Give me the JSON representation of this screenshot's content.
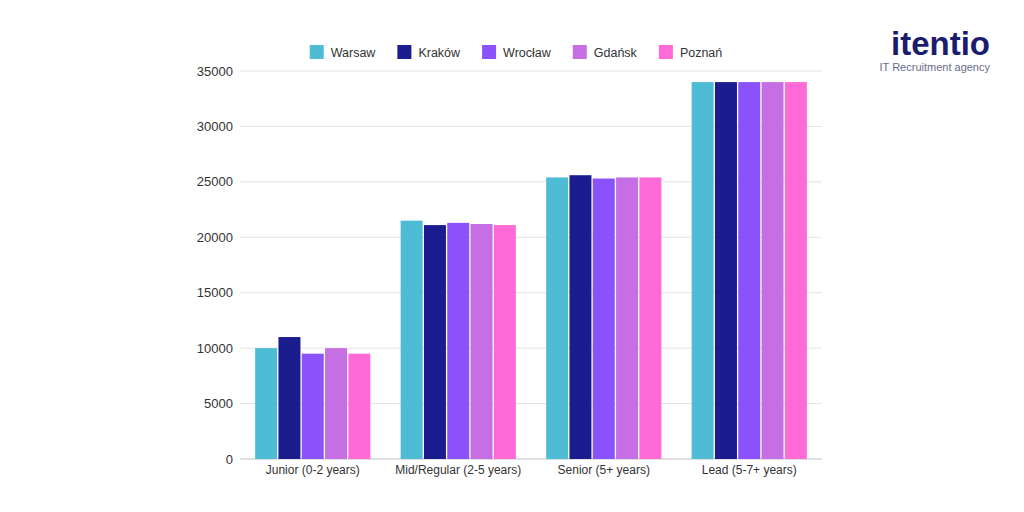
{
  "chart_data": {
    "type": "bar",
    "categories": [
      "Junior (0-2 years)",
      "Mid/Regular (2-5 years)",
      "Senior (5+ years)",
      "Lead (5-7+ years)"
    ],
    "series": [
      {
        "name": "Warsaw",
        "color": "#4fbcd6",
        "values": [
          10000,
          21500,
          25400,
          34000
        ]
      },
      {
        "name": "Kraków",
        "color": "#1b1c8e",
        "values": [
          11000,
          21100,
          25600,
          34000
        ]
      },
      {
        "name": "Wrocław",
        "color": "#8b52fb",
        "values": [
          9500,
          21300,
          25300,
          34000
        ]
      },
      {
        "name": "Gdańsk",
        "color": "#c66ee3",
        "values": [
          10000,
          21200,
          25400,
          34000
        ]
      },
      {
        "name": "Poznań",
        "color": "#ff6ad6",
        "values": [
          9500,
          21100,
          25400,
          34000
        ]
      }
    ],
    "ylim": [
      0,
      35000
    ],
    "yticks": [
      0,
      5000,
      10000,
      15000,
      20000,
      25000,
      30000,
      35000
    ],
    "grid": true,
    "legend": "top"
  },
  "logo": {
    "name": "itentio",
    "tagline": "IT Recruitment agency"
  }
}
